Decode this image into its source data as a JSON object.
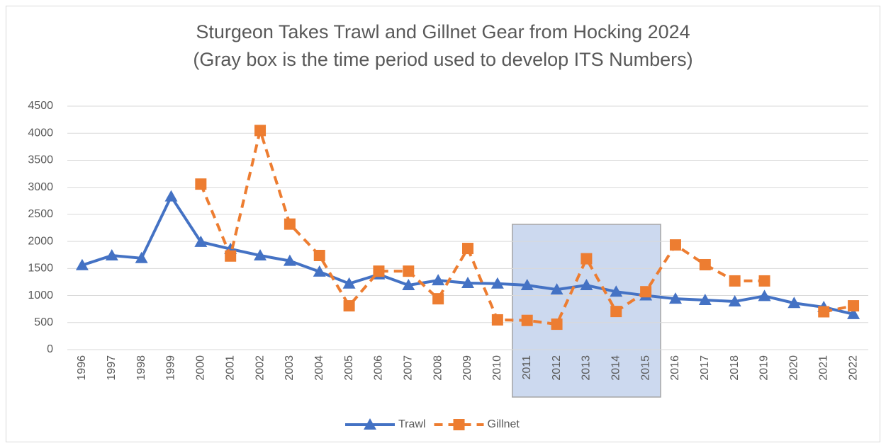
{
  "chart_data": {
    "type": "line",
    "title": "Sturgeon Takes Trawl and Gillnet Gear from Hocking 2024",
    "subtitle": "(Gray box is the time period used to develop ITS Numbers)",
    "categories": [
      "1996",
      "1997",
      "1998",
      "1999",
      "2000",
      "2001",
      "2002",
      "2003",
      "2004",
      "2005",
      "2006",
      "2007",
      "2008",
      "2009",
      "2010",
      "2011",
      "2012",
      "2013",
      "2014",
      "2015",
      "2016",
      "2017",
      "2018",
      "2019",
      "2020",
      "2021",
      "2022"
    ],
    "series": [
      {
        "name": "Trawl",
        "color": "#4472c4",
        "marker": "triangle",
        "dashed": false,
        "values": [
          1560,
          1740,
          1690,
          2830,
          1990,
          1860,
          1740,
          1640,
          1440,
          1220,
          1390,
          1190,
          1280,
          1230,
          1220,
          1190,
          1110,
          1190,
          1070,
          1000,
          940,
          915,
          890,
          990,
          860,
          785,
          655
        ]
      },
      {
        "name": "Gillnet",
        "color": "#ed7d31",
        "marker": "square",
        "dashed": true,
        "values": [
          null,
          null,
          null,
          null,
          3060,
          1730,
          4050,
          2320,
          1740,
          810,
          1450,
          1450,
          940,
          1870,
          550,
          540,
          470,
          1680,
          705,
          1070,
          1935,
          1570,
          1270,
          1270,
          null,
          700,
          810
        ]
      }
    ],
    "shaded_range": [
      "2011",
      "2015"
    ],
    "ylim": [
      0,
      4500
    ],
    "yticks": [
      0,
      500,
      1000,
      1500,
      2000,
      2500,
      3000,
      3500,
      4000,
      4500
    ],
    "grid": true,
    "legend": "bottom"
  }
}
